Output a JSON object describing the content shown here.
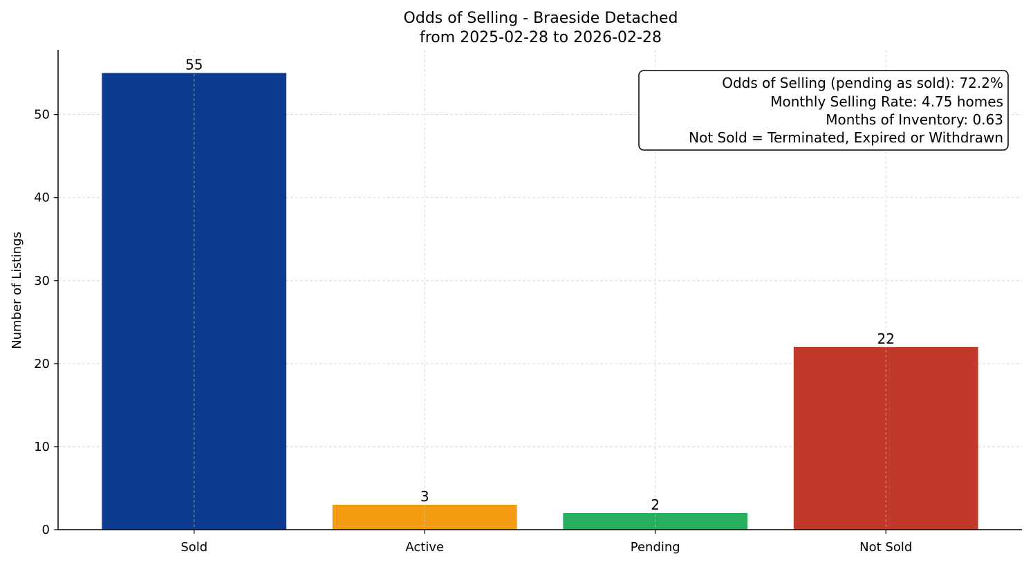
{
  "chart_data": {
    "type": "bar",
    "title": "Odds of Selling - Braeside Detached",
    "subtitle": "from 2025-02-28 to 2026-02-28",
    "xlabel": "",
    "ylabel": "Number of Listings",
    "categories": [
      "Sold",
      "Active",
      "Pending",
      "Not Sold"
    ],
    "values": [
      55,
      3,
      2,
      22
    ],
    "colors": [
      "#0c3b8f",
      "#f39c12",
      "#27ae60",
      "#c0392b"
    ],
    "data_labels": [
      "55",
      "3",
      "2",
      "22"
    ],
    "ylim": [
      0,
      57.8
    ],
    "yticks": [
      0,
      10,
      20,
      30,
      40,
      50
    ],
    "grid": true,
    "annotation": [
      "Odds of Selling (pending as sold): 72.2%",
      "Monthly Selling Rate: 4.75 homes",
      "Months of Inventory: 0.63",
      "Not Sold = Terminated, Expired or Withdrawn"
    ],
    "annotation_placement": "top-right"
  }
}
